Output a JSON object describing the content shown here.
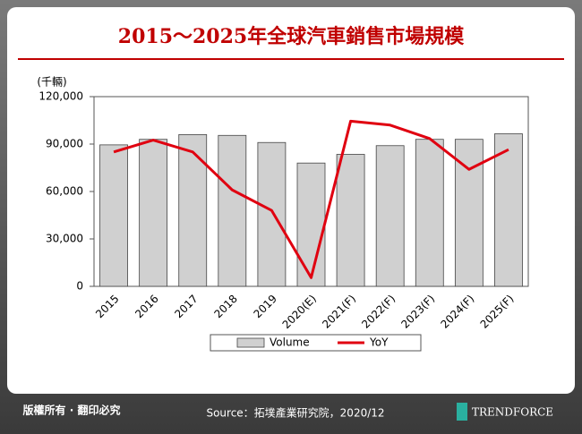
{
  "chart_data": {
    "type": "bar-line",
    "title": "2015～2025年全球汽車銷售市場規模",
    "y_unit_label": "(千輛)",
    "categories": [
      "2015",
      "2016",
      "2017",
      "2018",
      "2019",
      "2020(E)",
      "2021(F)",
      "2022(F)",
      "2023(F)",
      "2024(F)",
      "2025(F)"
    ],
    "series": [
      {
        "name": "Volume",
        "type": "bar",
        "color": "#d0d0d0",
        "values": [
          89500,
          93000,
          96000,
          95500,
          91000,
          78000,
          83500,
          89000,
          93000,
          93000,
          96500
        ]
      },
      {
        "name": "YoY",
        "type": "line",
        "axis": "y2",
        "color": "#e00010",
        "values": [
          2.0,
          3.5,
          2.0,
          -2.8,
          -5.4,
          -13.9,
          5.9,
          5.4,
          3.7,
          -0.2,
          2.3
        ]
      }
    ],
    "ylim": [
      0,
      120000
    ],
    "yticks": [
      0,
      {
        "value": 30000,
        "label": "30,000"
      },
      {
        "value": 60000,
        "label": "60,000"
      },
      {
        "value": 90000,
        "label": "90,000"
      },
      {
        "value": 120000,
        "label": "120,000"
      }
    ],
    "y2lim": [
      -15,
      9
    ],
    "legend": "bottom"
  },
  "footer": {
    "copyright": "版權所有 · 翻印必究",
    "source": "Source：拓墣產業研究院，2020/12",
    "logo": "TRENDFORCE"
  }
}
